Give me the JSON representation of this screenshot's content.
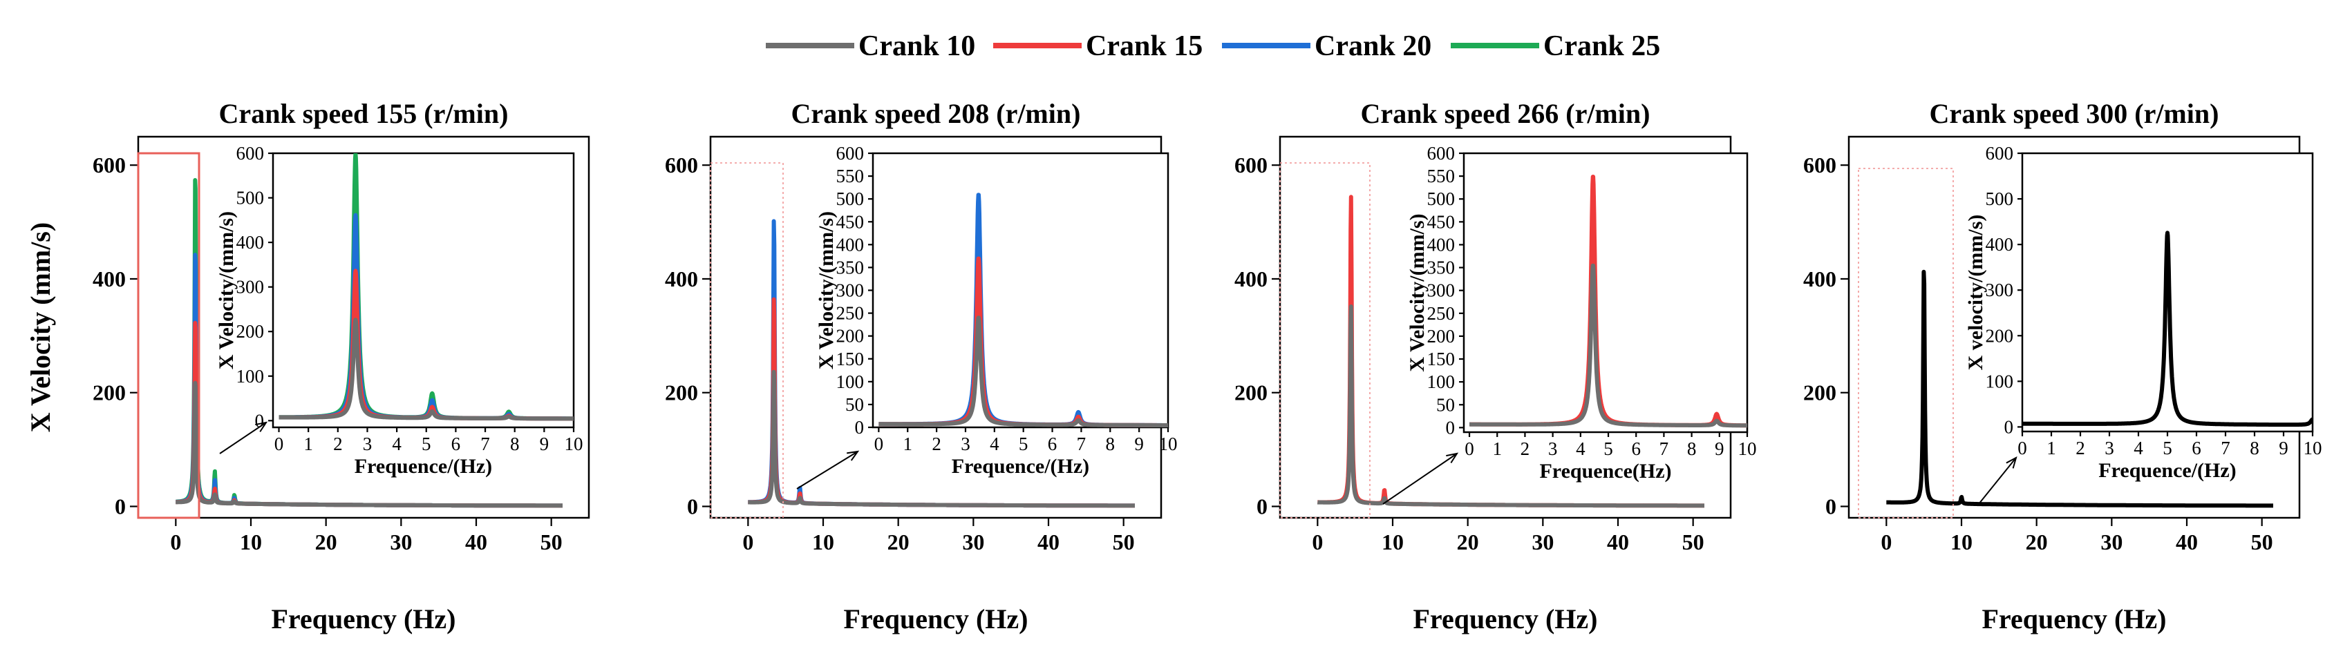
{
  "legend": [
    {
      "label": "Crank 10",
      "color": "#6e6e6e"
    },
    {
      "label": "Crank 15",
      "color": "#ee3b3b"
    },
    {
      "label": "Crank 20",
      "color": "#1f6fd6"
    },
    {
      "label": "Crank 25",
      "color": "#1daa55"
    }
  ],
  "chart_data": [
    {
      "type": "line",
      "title": "Crank speed 155 (r/min)",
      "xlabel": "Frequency (Hz)",
      "ylabel": "X Velocity (mm/s)",
      "xlim": [
        -5,
        55
      ],
      "ylim": [
        -20,
        650
      ],
      "xticks": [
        0,
        10,
        20,
        30,
        40,
        50
      ],
      "yticks": [
        0,
        200,
        400,
        600
      ],
      "series": [
        {
          "name": "Crank 25",
          "color": "#1daa55",
          "peaks": [
            [
              2.6,
              592
            ],
            [
              5.2,
              55
            ],
            [
              7.8,
              15
            ]
          ]
        },
        {
          "name": "Crank 20",
          "color": "#1f6fd6",
          "peaks": [
            [
              2.6,
              455
            ],
            [
              5.2,
              40
            ],
            [
              7.8,
              10
            ]
          ]
        },
        {
          "name": "Crank 15",
          "color": "#ee3b3b",
          "peaks": [
            [
              2.6,
              330
            ],
            [
              5.2,
              25
            ],
            [
              7.8,
              6
            ]
          ]
        },
        {
          "name": "Crank 10",
          "color": "#6e6e6e",
          "peaks": [
            [
              2.6,
              220
            ],
            [
              5.2,
              15
            ],
            [
              7.8,
              4
            ]
          ]
        }
      ],
      "inset": {
        "xlabel": "Frequence/(Hz)",
        "ylabel": "X Velocity/(mm/s)",
        "xlim": [
          -0.2,
          10
        ],
        "ylim": [
          -15,
          600
        ],
        "xticks": [
          0,
          1,
          2,
          3,
          4,
          5,
          6,
          7,
          8,
          9,
          10
        ],
        "yticks": [
          0,
          100,
          200,
          300,
          400,
          500,
          600
        ]
      }
    },
    {
      "type": "line",
      "title": "Crank speed 208 (r/min)",
      "xlabel": "Frequency (Hz)",
      "ylabel": "",
      "xlim": [
        -5,
        55
      ],
      "ylim": [
        -20,
        650
      ],
      "xticks": [
        0,
        10,
        20,
        30,
        40,
        50
      ],
      "yticks": [
        0,
        200,
        400,
        600
      ],
      "series": [
        {
          "name": "Crank 20",
          "color": "#1f6fd6",
          "peaks": [
            [
              3.45,
              505
            ],
            [
              6.9,
              28
            ]
          ]
        },
        {
          "name": "Crank 15",
          "color": "#ee3b3b",
          "peaks": [
            [
              3.45,
              365
            ],
            [
              6.9,
              18
            ]
          ]
        },
        {
          "name": "Crank 10",
          "color": "#6e6e6e",
          "peaks": [
            [
              3.45,
              235
            ],
            [
              6.9,
              10
            ]
          ]
        }
      ],
      "inset": {
        "xlabel": "Frequence/(Hz)",
        "ylabel": "X Velocity/(mm/s)",
        "xlim": [
          -0.2,
          10
        ],
        "ylim": [
          0,
          600
        ],
        "xticks": [
          0,
          1,
          2,
          3,
          4,
          5,
          6,
          7,
          8,
          9,
          10
        ],
        "yticks": [
          0,
          50,
          100,
          150,
          200,
          250,
          300,
          350,
          400,
          450,
          500,
          550,
          600
        ]
      }
    },
    {
      "type": "line",
      "title": "Crank speed 266 (r/min)",
      "xlabel": "Frequency (Hz)",
      "ylabel": "",
      "xlim": [
        -5,
        55
      ],
      "ylim": [
        -20,
        650
      ],
      "xticks": [
        0,
        10,
        20,
        30,
        40,
        50
      ],
      "yticks": [
        0,
        200,
        400,
        600
      ],
      "series": [
        {
          "name": "Crank 15",
          "color": "#ee3b3b",
          "peaks": [
            [
              4.45,
              545
            ],
            [
              8.9,
              25
            ]
          ]
        },
        {
          "name": "Crank 10",
          "color": "#6e6e6e",
          "peaks": [
            [
              4.45,
              350
            ],
            [
              8.9,
              10
            ]
          ]
        }
      ],
      "inset": {
        "xlabel": "Frequence(Hz)",
        "ylabel": "X Velocity/(mm/s)",
        "xlim": [
          -0.2,
          10
        ],
        "ylim": [
          -10,
          600
        ],
        "xticks": [
          0,
          1,
          2,
          3,
          4,
          5,
          6,
          7,
          8,
          9,
          10
        ],
        "yticks": [
          0,
          50,
          100,
          150,
          200,
          250,
          300,
          350,
          400,
          450,
          500,
          550,
          600
        ]
      }
    },
    {
      "type": "line",
      "title": "Crank speed 300 (r/min)",
      "xlabel": "Frequency (Hz)",
      "ylabel": "",
      "xlim": [
        -5,
        55
      ],
      "ylim": [
        -20,
        650
      ],
      "xticks": [
        0,
        10,
        20,
        30,
        40,
        50
      ],
      "yticks": [
        0,
        200,
        400,
        600
      ],
      "series": [
        {
          "name": "",
          "color": "#000000",
          "peaks": [
            [
              5.0,
              420
            ],
            [
              10.0,
              12
            ]
          ]
        }
      ],
      "inset": {
        "xlabel": "Frequence/(Hz)",
        "ylabel": "X velocity/(mm/s)",
        "xlim": [
          0,
          10
        ],
        "ylim": [
          -10,
          600
        ],
        "xticks": [
          0,
          1,
          2,
          3,
          4,
          5,
          6,
          7,
          8,
          9,
          10
        ],
        "yticks": [
          0,
          100,
          200,
          300,
          400,
          500,
          600
        ]
      }
    }
  ]
}
